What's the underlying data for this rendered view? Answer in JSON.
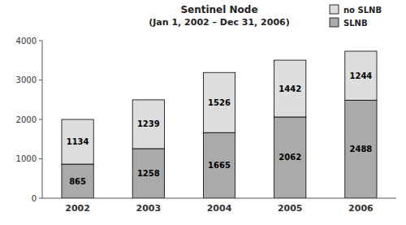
{
  "chart_data": {
    "type": "bar",
    "title": "Sentinel Node",
    "subtitle": "(Jan 1, 2002 – Dec 31, 2006)",
    "categories": [
      "2002",
      "2003",
      "2004",
      "2005",
      "2006"
    ],
    "series": [
      {
        "name": "SLNB",
        "color": "#aaaaaa",
        "values": [
          865,
          1258,
          1665,
          2062,
          2488
        ]
      },
      {
        "name": "no SLNB",
        "color": "#dddddd",
        "values": [
          1134,
          1239,
          1526,
          1442,
          1244
        ]
      }
    ],
    "stacked": true,
    "data_labels": true,
    "legend": "upper right",
    "grid": false,
    "ylim": [
      0,
      4000
    ],
    "yticks": [
      0,
      1000,
      2000,
      3000,
      4000
    ]
  }
}
